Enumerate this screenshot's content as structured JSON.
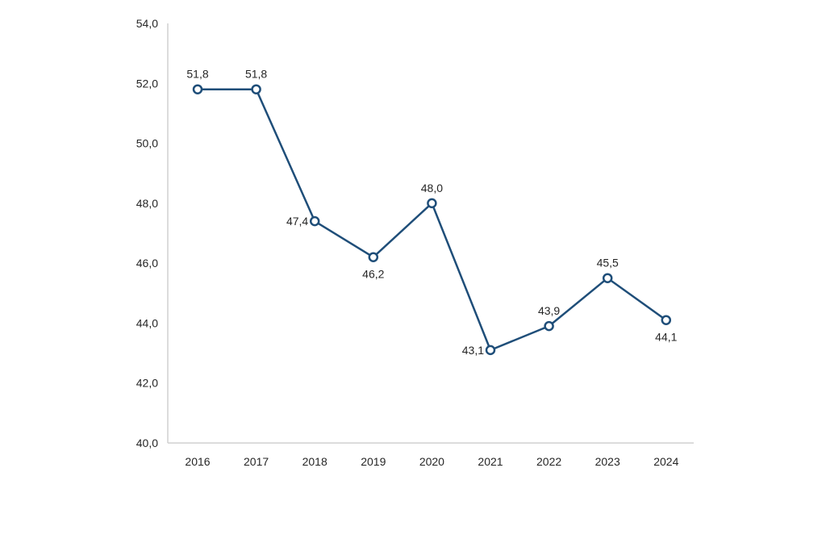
{
  "chart_data": {
    "type": "line",
    "categories": [
      "2016",
      "2017",
      "2018",
      "2019",
      "2020",
      "2021",
      "2022",
      "2023",
      "2024"
    ],
    "series": [
      {
        "values": [
          51.8,
          51.8,
          47.4,
          46.2,
          48.0,
          43.1,
          43.9,
          45.5,
          44.1
        ]
      }
    ],
    "data_labels": [
      "51,8",
      "51,8",
      "47,4",
      "46,2",
      "48,0",
      "43,1",
      "43,9",
      "45,5",
      "44,1"
    ],
    "ylim": [
      40,
      54
    ],
    "y_ticks": [
      "40,0",
      "42,0",
      "44,0",
      "46,0",
      "48,0",
      "50,0",
      "52,0",
      "54,0"
    ],
    "grid": false,
    "legend": "none",
    "colors": {
      "series": "#1f4e79",
      "axis": "#d0d0d0"
    }
  }
}
